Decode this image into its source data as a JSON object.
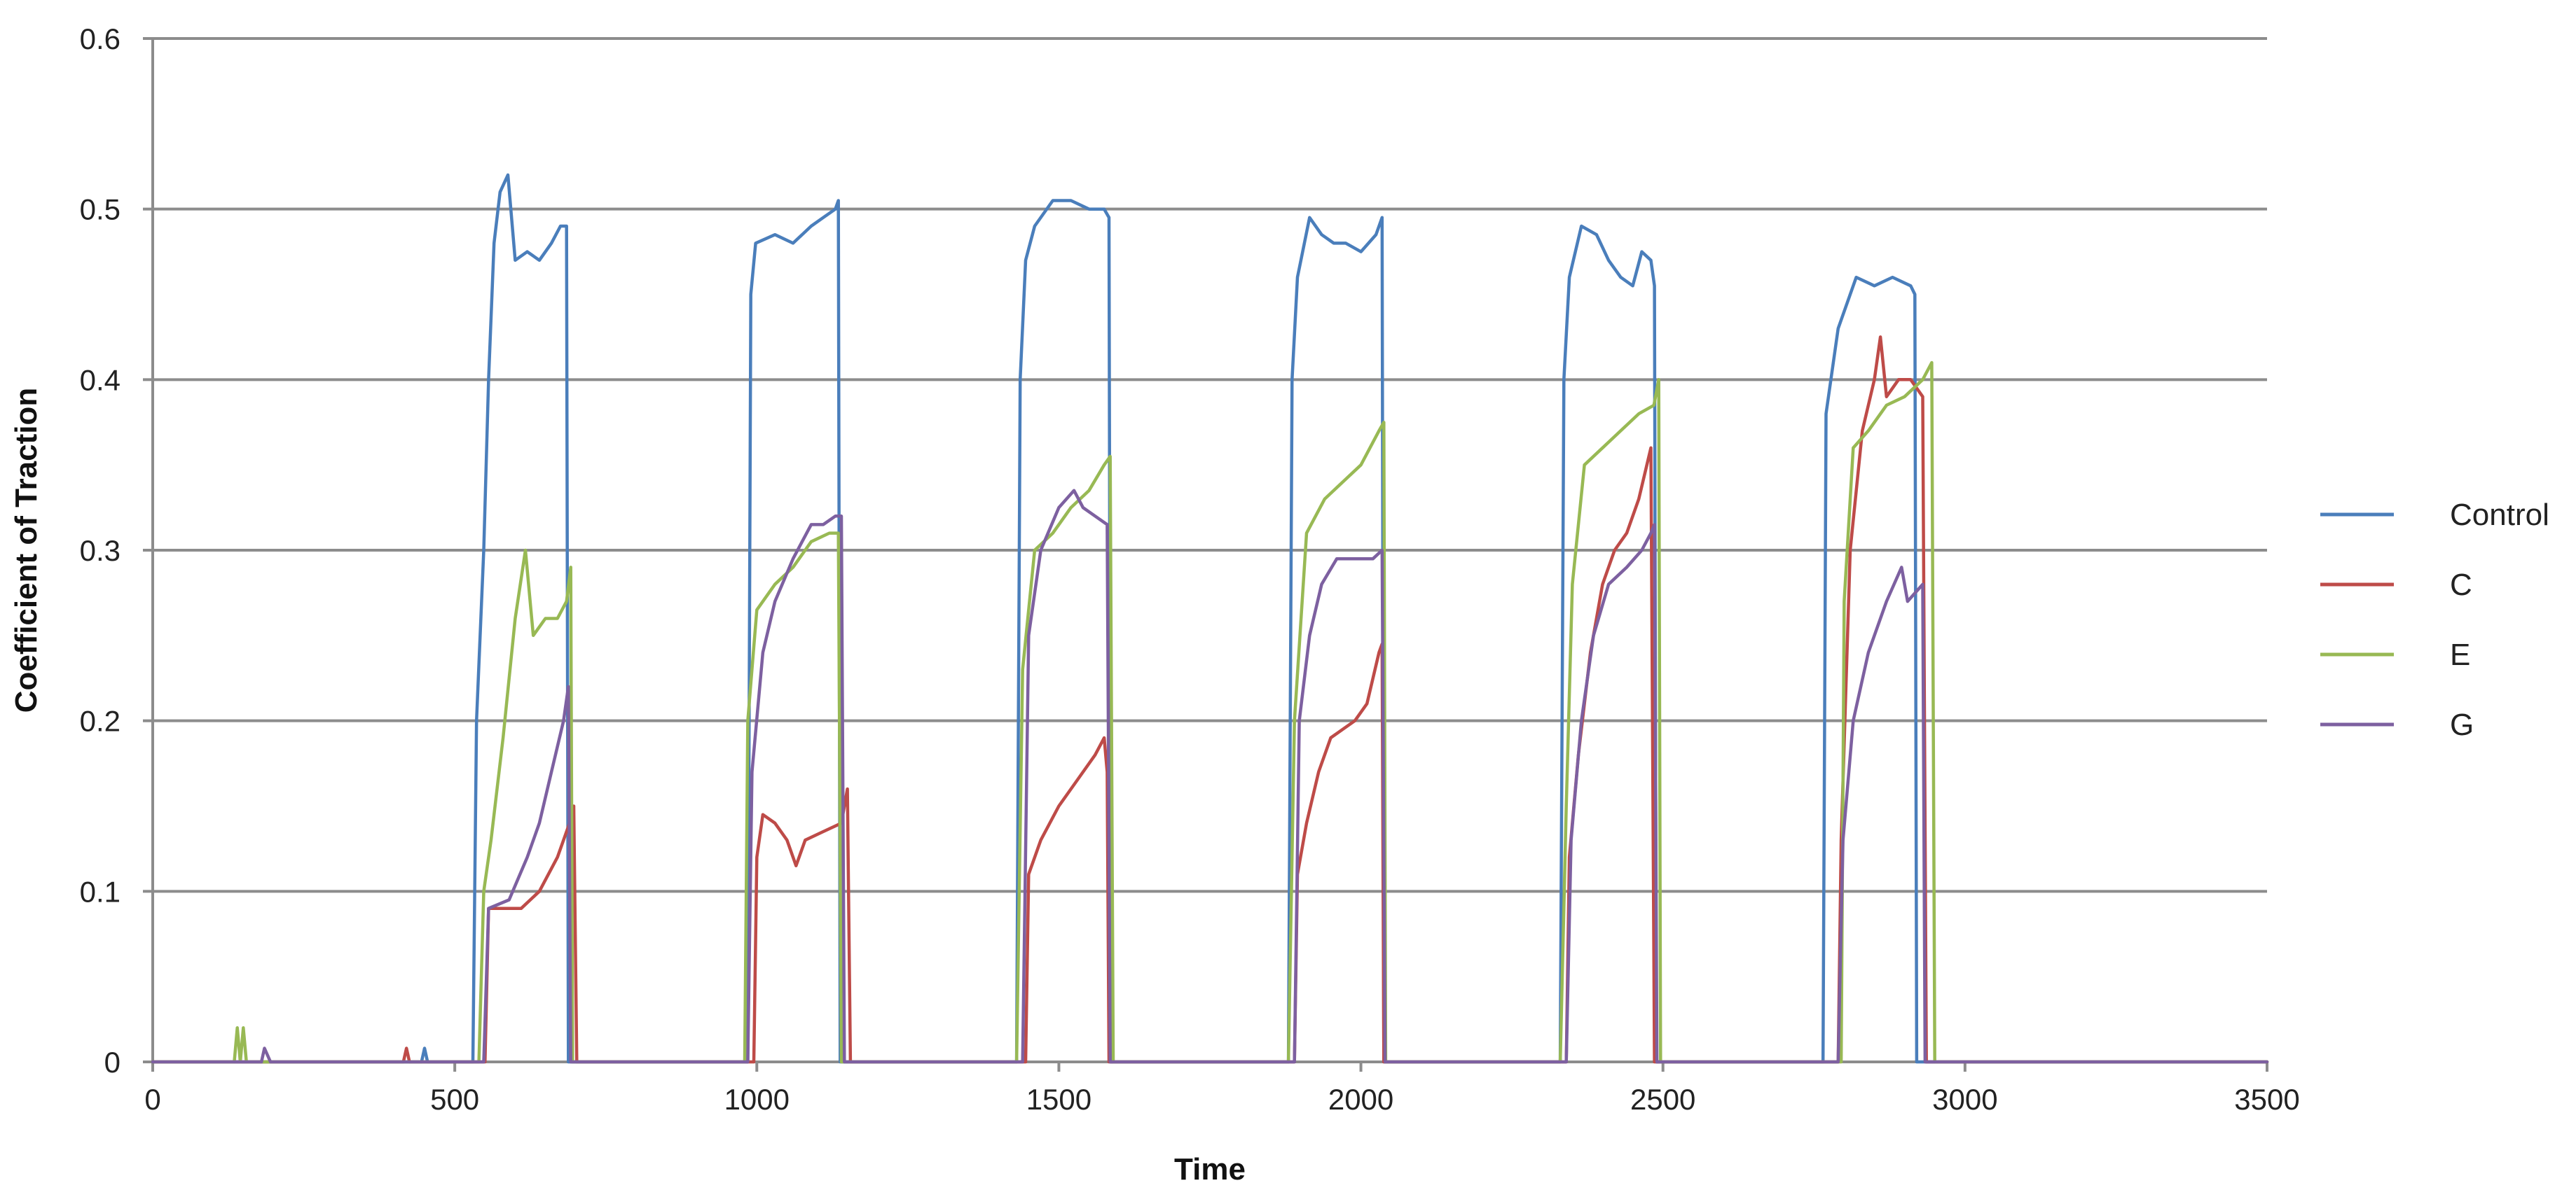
{
  "chart_data": {
    "type": "line",
    "title": "",
    "xlabel": "Time",
    "ylabel": "Coefficient of Traction",
    "xlim": [
      0,
      3500
    ],
    "ylim": [
      0,
      0.6
    ],
    "xticks": [
      0,
      500,
      1000,
      1500,
      2000,
      2500,
      3000,
      3500
    ],
    "xtick_labels": [
      "0",
      "500",
      "1000",
      "1500",
      "2000",
      "2500",
      "3000",
      "3500"
    ],
    "yticks": [
      0,
      0.1,
      0.2,
      0.3,
      0.4,
      0.5,
      0.6
    ],
    "ytick_labels": [
      "0",
      "0.1",
      "0.2",
      "0.3",
      "0.4",
      "0.5",
      "0.6"
    ],
    "grid": "horizontal",
    "legend_position": "right",
    "series": [
      {
        "name": "Control",
        "color": "#4a7ebb",
        "points": [
          [
            0,
            0
          ],
          [
            445,
            0
          ],
          [
            450,
            0.008
          ],
          [
            455,
            0
          ],
          [
            530,
            0
          ],
          [
            536,
            0.2
          ],
          [
            548,
            0.3
          ],
          [
            556,
            0.4
          ],
          [
            565,
            0.48
          ],
          [
            575,
            0.51
          ],
          [
            588,
            0.52
          ],
          [
            600,
            0.47
          ],
          [
            620,
            0.475
          ],
          [
            640,
            0.47
          ],
          [
            660,
            0.48
          ],
          [
            675,
            0.49
          ],
          [
            685,
            0.49
          ],
          [
            688,
            0
          ],
          [
            985,
            0
          ],
          [
            990,
            0.45
          ],
          [
            998,
            0.48
          ],
          [
            1030,
            0.485
          ],
          [
            1060,
            0.48
          ],
          [
            1090,
            0.49
          ],
          [
            1110,
            0.495
          ],
          [
            1130,
            0.5
          ],
          [
            1135,
            0.505
          ],
          [
            1138,
            0
          ],
          [
            1430,
            0
          ],
          [
            1436,
            0.4
          ],
          [
            1445,
            0.47
          ],
          [
            1460,
            0.49
          ],
          [
            1490,
            0.505
          ],
          [
            1520,
            0.505
          ],
          [
            1550,
            0.5
          ],
          [
            1575,
            0.5
          ],
          [
            1583,
            0.495
          ],
          [
            1586,
            0
          ],
          [
            1880,
            0
          ],
          [
            1886,
            0.4
          ],
          [
            1895,
            0.46
          ],
          [
            1915,
            0.495
          ],
          [
            1935,
            0.485
          ],
          [
            1955,
            0.48
          ],
          [
            1975,
            0.48
          ],
          [
            2000,
            0.475
          ],
          [
            2025,
            0.485
          ],
          [
            2035,
            0.495
          ],
          [
            2038,
            0
          ],
          [
            2330,
            0
          ],
          [
            2336,
            0.4
          ],
          [
            2345,
            0.46
          ],
          [
            2365,
            0.49
          ],
          [
            2390,
            0.485
          ],
          [
            2410,
            0.47
          ],
          [
            2430,
            0.46
          ],
          [
            2450,
            0.455
          ],
          [
            2465,
            0.475
          ],
          [
            2480,
            0.47
          ],
          [
            2486,
            0.455
          ],
          [
            2489,
            0
          ],
          [
            2765,
            0
          ],
          [
            2770,
            0.38
          ],
          [
            2790,
            0.43
          ],
          [
            2820,
            0.46
          ],
          [
            2850,
            0.455
          ],
          [
            2880,
            0.46
          ],
          [
            2910,
            0.455
          ],
          [
            2917,
            0.45
          ],
          [
            2920,
            0
          ],
          [
            3500,
            0
          ]
        ]
      },
      {
        "name": "C",
        "color": "#be4b48",
        "points": [
          [
            0,
            0
          ],
          [
            415,
            0
          ],
          [
            420,
            0.008
          ],
          [
            425,
            0
          ],
          [
            550,
            0
          ],
          [
            556,
            0.09
          ],
          [
            580,
            0.09
          ],
          [
            610,
            0.09
          ],
          [
            640,
            0.1
          ],
          [
            670,
            0.12
          ],
          [
            690,
            0.14
          ],
          [
            697,
            0.15
          ],
          [
            702,
            0
          ],
          [
            995,
            0
          ],
          [
            1000,
            0.12
          ],
          [
            1010,
            0.145
          ],
          [
            1030,
            0.14
          ],
          [
            1050,
            0.13
          ],
          [
            1065,
            0.115
          ],
          [
            1080,
            0.13
          ],
          [
            1110,
            0.135
          ],
          [
            1140,
            0.14
          ],
          [
            1150,
            0.16
          ],
          [
            1155,
            0
          ],
          [
            1445,
            0
          ],
          [
            1450,
            0.11
          ],
          [
            1470,
            0.13
          ],
          [
            1500,
            0.15
          ],
          [
            1530,
            0.165
          ],
          [
            1560,
            0.18
          ],
          [
            1575,
            0.19
          ],
          [
            1580,
            0.17
          ],
          [
            1583,
            0
          ],
          [
            1890,
            0
          ],
          [
            1895,
            0.11
          ],
          [
            1910,
            0.14
          ],
          [
            1930,
            0.17
          ],
          [
            1950,
            0.19
          ],
          [
            1970,
            0.195
          ],
          [
            1990,
            0.2
          ],
          [
            2010,
            0.21
          ],
          [
            2030,
            0.24
          ],
          [
            2035,
            0.245
          ],
          [
            2038,
            0
          ],
          [
            2340,
            0
          ],
          [
            2345,
            0.12
          ],
          [
            2360,
            0.18
          ],
          [
            2380,
            0.24
          ],
          [
            2400,
            0.28
          ],
          [
            2420,
            0.3
          ],
          [
            2440,
            0.31
          ],
          [
            2460,
            0.33
          ],
          [
            2480,
            0.36
          ],
          [
            2486,
            0
          ],
          [
            2790,
            0
          ],
          [
            2795,
            0.13
          ],
          [
            2810,
            0.3
          ],
          [
            2830,
            0.37
          ],
          [
            2850,
            0.4
          ],
          [
            2860,
            0.425
          ],
          [
            2870,
            0.39
          ],
          [
            2890,
            0.4
          ],
          [
            2910,
            0.4
          ],
          [
            2930,
            0.39
          ],
          [
            2936,
            0
          ],
          [
            3500,
            0
          ]
        ]
      },
      {
        "name": "E",
        "color": "#98b954",
        "points": [
          [
            0,
            0
          ],
          [
            135,
            0
          ],
          [
            140,
            0.02
          ],
          [
            145,
            0
          ],
          [
            150,
            0.02
          ],
          [
            155,
            0
          ],
          [
            540,
            0
          ],
          [
            548,
            0.1
          ],
          [
            560,
            0.13
          ],
          [
            580,
            0.19
          ],
          [
            600,
            0.26
          ],
          [
            617,
            0.3
          ],
          [
            630,
            0.25
          ],
          [
            650,
            0.26
          ],
          [
            670,
            0.26
          ],
          [
            685,
            0.27
          ],
          [
            692,
            0.29
          ],
          [
            695,
            0
          ],
          [
            980,
            0
          ],
          [
            985,
            0.2
          ],
          [
            1000,
            0.265
          ],
          [
            1030,
            0.28
          ],
          [
            1060,
            0.29
          ],
          [
            1090,
            0.305
          ],
          [
            1120,
            0.31
          ],
          [
            1135,
            0.31
          ],
          [
            1140,
            0
          ],
          [
            1430,
            0
          ],
          [
            1440,
            0.23
          ],
          [
            1460,
            0.3
          ],
          [
            1490,
            0.31
          ],
          [
            1520,
            0.325
          ],
          [
            1550,
            0.335
          ],
          [
            1575,
            0.35
          ],
          [
            1585,
            0.355
          ],
          [
            1590,
            0
          ],
          [
            1880,
            0
          ],
          [
            1890,
            0.2
          ],
          [
            1910,
            0.31
          ],
          [
            1940,
            0.33
          ],
          [
            1970,
            0.34
          ],
          [
            2000,
            0.35
          ],
          [
            2030,
            0.37
          ],
          [
            2038,
            0.375
          ],
          [
            2041,
            0
          ],
          [
            2330,
            0
          ],
          [
            2340,
            0.15
          ],
          [
            2350,
            0.28
          ],
          [
            2370,
            0.35
          ],
          [
            2400,
            0.36
          ],
          [
            2430,
            0.37
          ],
          [
            2460,
            0.38
          ],
          [
            2485,
            0.385
          ],
          [
            2493,
            0.4
          ],
          [
            2496,
            0
          ],
          [
            2795,
            0
          ],
          [
            2800,
            0.27
          ],
          [
            2815,
            0.36
          ],
          [
            2840,
            0.37
          ],
          [
            2870,
            0.385
          ],
          [
            2900,
            0.39
          ],
          [
            2930,
            0.4
          ],
          [
            2945,
            0.41
          ],
          [
            2950,
            0
          ],
          [
            3500,
            0
          ]
        ]
      },
      {
        "name": "G",
        "color": "#7d60a0",
        "points": [
          [
            0,
            0
          ],
          [
            180,
            0
          ],
          [
            185,
            0.008
          ],
          [
            195,
            0
          ],
          [
            548,
            0
          ],
          [
            556,
            0.09
          ],
          [
            590,
            0.095
          ],
          [
            620,
            0.12
          ],
          [
            640,
            0.14
          ],
          [
            660,
            0.17
          ],
          [
            680,
            0.2
          ],
          [
            688,
            0.22
          ],
          [
            692,
            0
          ],
          [
            985,
            0
          ],
          [
            992,
            0.17
          ],
          [
            1010,
            0.24
          ],
          [
            1030,
            0.27
          ],
          [
            1060,
            0.295
          ],
          [
            1090,
            0.315
          ],
          [
            1110,
            0.315
          ],
          [
            1130,
            0.32
          ],
          [
            1140,
            0.32
          ],
          [
            1145,
            0
          ],
          [
            1440,
            0
          ],
          [
            1450,
            0.25
          ],
          [
            1470,
            0.3
          ],
          [
            1500,
            0.325
          ],
          [
            1525,
            0.335
          ],
          [
            1540,
            0.325
          ],
          [
            1560,
            0.32
          ],
          [
            1580,
            0.315
          ],
          [
            1585,
            0
          ],
          [
            1890,
            0
          ],
          [
            1898,
            0.2
          ],
          [
            1915,
            0.25
          ],
          [
            1935,
            0.28
          ],
          [
            1960,
            0.295
          ],
          [
            1990,
            0.295
          ],
          [
            2020,
            0.295
          ],
          [
            2035,
            0.3
          ],
          [
            2040,
            0
          ],
          [
            2340,
            0
          ],
          [
            2348,
            0.13
          ],
          [
            2365,
            0.2
          ],
          [
            2385,
            0.25
          ],
          [
            2410,
            0.28
          ],
          [
            2440,
            0.29
          ],
          [
            2465,
            0.3
          ],
          [
            2480,
            0.31
          ],
          [
            2486,
            0.315
          ],
          [
            2490,
            0
          ],
          [
            2790,
            0
          ],
          [
            2798,
            0.13
          ],
          [
            2815,
            0.2
          ],
          [
            2840,
            0.24
          ],
          [
            2870,
            0.27
          ],
          [
            2895,
            0.29
          ],
          [
            2905,
            0.27
          ],
          [
            2930,
            0.28
          ],
          [
            2934,
            0
          ],
          [
            3500,
            0
          ]
        ]
      }
    ]
  }
}
